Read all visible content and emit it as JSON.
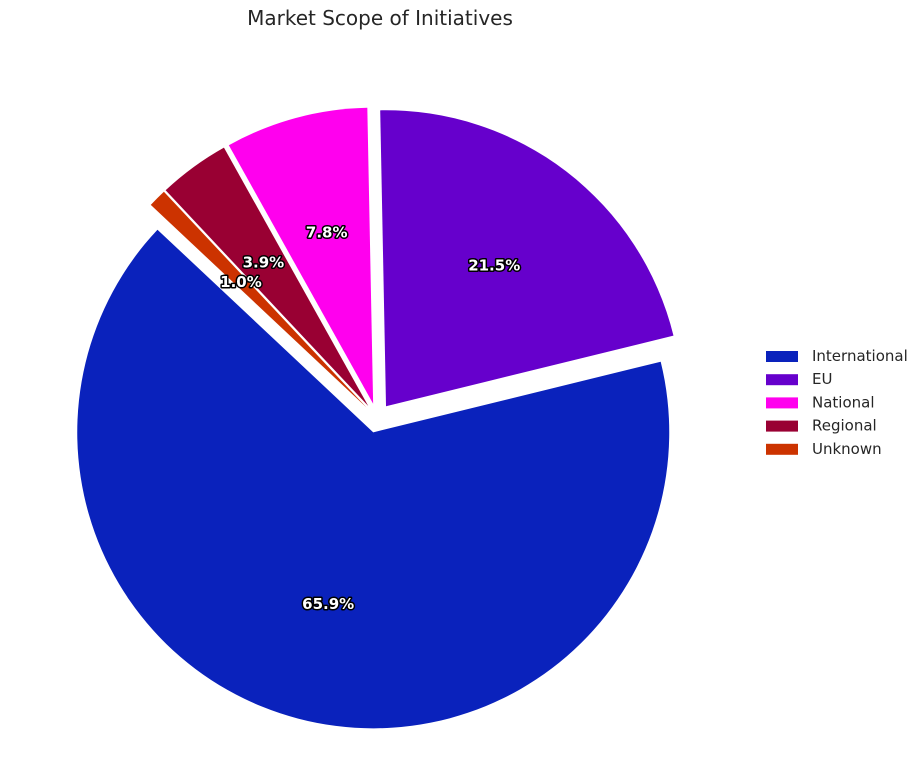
{
  "chart_data": {
    "type": "pie",
    "title": "Market Scope of Initiatives",
    "categories": [
      "International",
      "EU",
      "National",
      "Regional",
      "Unknown"
    ],
    "values": [
      65.9,
      21.5,
      7.8,
      3.9,
      1.0
    ],
    "value_labels": [
      "65.9%",
      "21.5%",
      "7.8%",
      "3.9%",
      "1.0%"
    ],
    "colors": [
      "#0a22bc",
      "#6600cc",
      "#ff00ee",
      "#990033",
      "#cc3300"
    ],
    "start_angle_deg": 136.8,
    "exploded": true,
    "legend": {
      "placement": "right",
      "entries": [
        "International",
        "EU",
        "National",
        "Regional",
        "Unknown"
      ]
    }
  }
}
